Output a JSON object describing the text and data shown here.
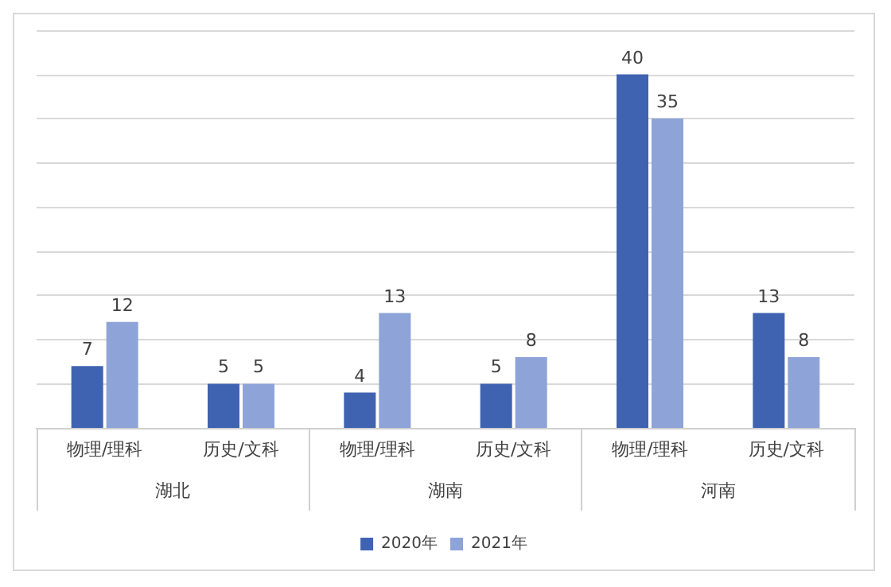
{
  "chart_data": {
    "type": "bar",
    "categories": [
      "物理/理科",
      "历史/文科",
      "物理/理科",
      "历史/文科",
      "物理/理科",
      "历史/文科"
    ],
    "series": [
      {
        "name": "2020年",
        "color": "#3f63b0",
        "values": [
          7,
          5,
          4,
          5,
          40,
          13
        ]
      },
      {
        "name": "2021年",
        "color": "#8ea3d7",
        "values": [
          12,
          5,
          13,
          8,
          35,
          8
        ]
      }
    ],
    "annotations": [
      "湖北",
      "湖南",
      "河南"
    ],
    "ylim": [
      0,
      45
    ],
    "yticks": [
      {
        "value": 0,
        "label": null
      },
      {
        "value": 5,
        "label": null
      },
      {
        "value": 10,
        "label": null
      },
      {
        "value": 15,
        "label": null
      },
      {
        "value": 20,
        "label": null
      },
      {
        "value": 25,
        "label": null
      },
      {
        "value": 30,
        "label": null
      },
      {
        "value": 35,
        "label": null
      },
      {
        "value": 40,
        "label": null
      },
      {
        "value": 45,
        "label": null
      }
    ],
    "tick_labels": "x",
    "grid": "y",
    "legend": "bottom",
    "data_labels": true
  }
}
